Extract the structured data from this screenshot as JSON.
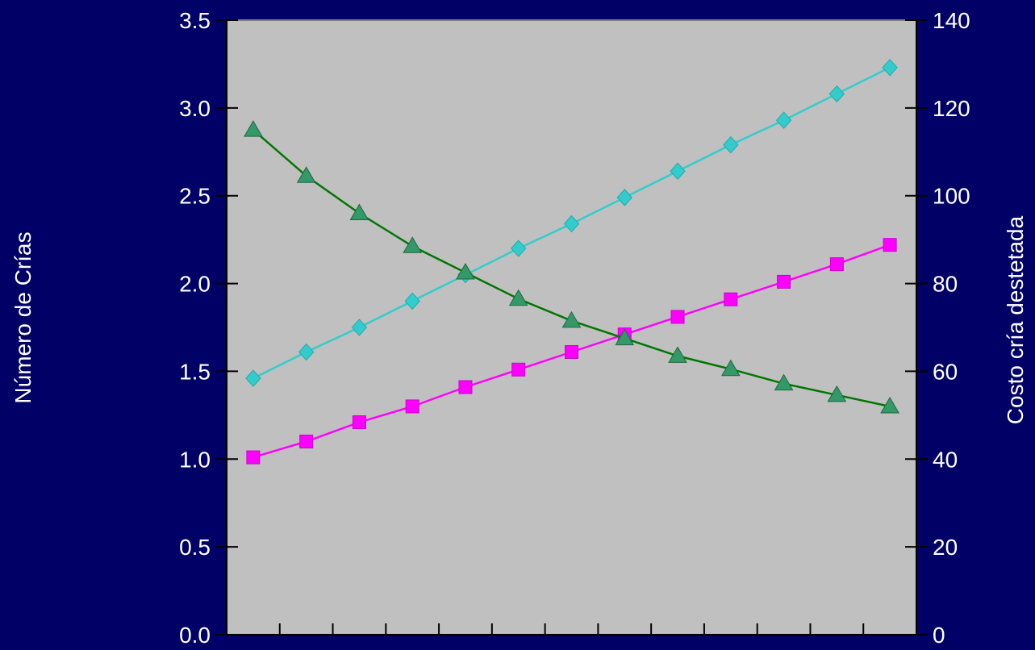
{
  "chart_data": {
    "type": "line",
    "title": "",
    "xlabel": "",
    "ylabel": "Número de Crías",
    "y2label": "Costo cría destetada",
    "ylim": [
      0,
      3.5
    ],
    "y2lim": [
      0,
      140
    ],
    "yticks": [
      "0.0",
      "0.5",
      "1.0",
      "1.5",
      "2.0",
      "2.5",
      "3.0",
      "3.5"
    ],
    "y2ticks": [
      "0",
      "20",
      "40",
      "60",
      "80",
      "100",
      "120",
      "140"
    ],
    "x_tick_count": 13,
    "grid": false,
    "legend": "none",
    "plot_background": "#c0c0c0",
    "background": "#000066",
    "series": [
      {
        "axis": "left",
        "marker": "square",
        "color": "#ff00ff",
        "values": [
          1.01,
          1.1,
          1.21,
          1.3,
          1.41,
          1.51,
          1.61,
          1.71,
          1.81,
          1.91,
          2.01,
          2.11,
          2.22
        ]
      },
      {
        "axis": "left",
        "marker": "diamond",
        "color": "#33cccc",
        "values": [
          1.46,
          1.61,
          1.75,
          1.9,
          2.05,
          2.2,
          2.34,
          2.49,
          2.64,
          2.79,
          2.93,
          3.08,
          3.23
        ]
      },
      {
        "axis": "right",
        "marker": "triangle",
        "color": "#339966",
        "line_color": "#007700",
        "values": [
          115,
          104.5,
          96,
          88.5,
          82.5,
          76.5,
          71.5,
          67.5,
          63.5,
          60.5,
          57.2,
          54.6,
          52
        ]
      }
    ]
  }
}
